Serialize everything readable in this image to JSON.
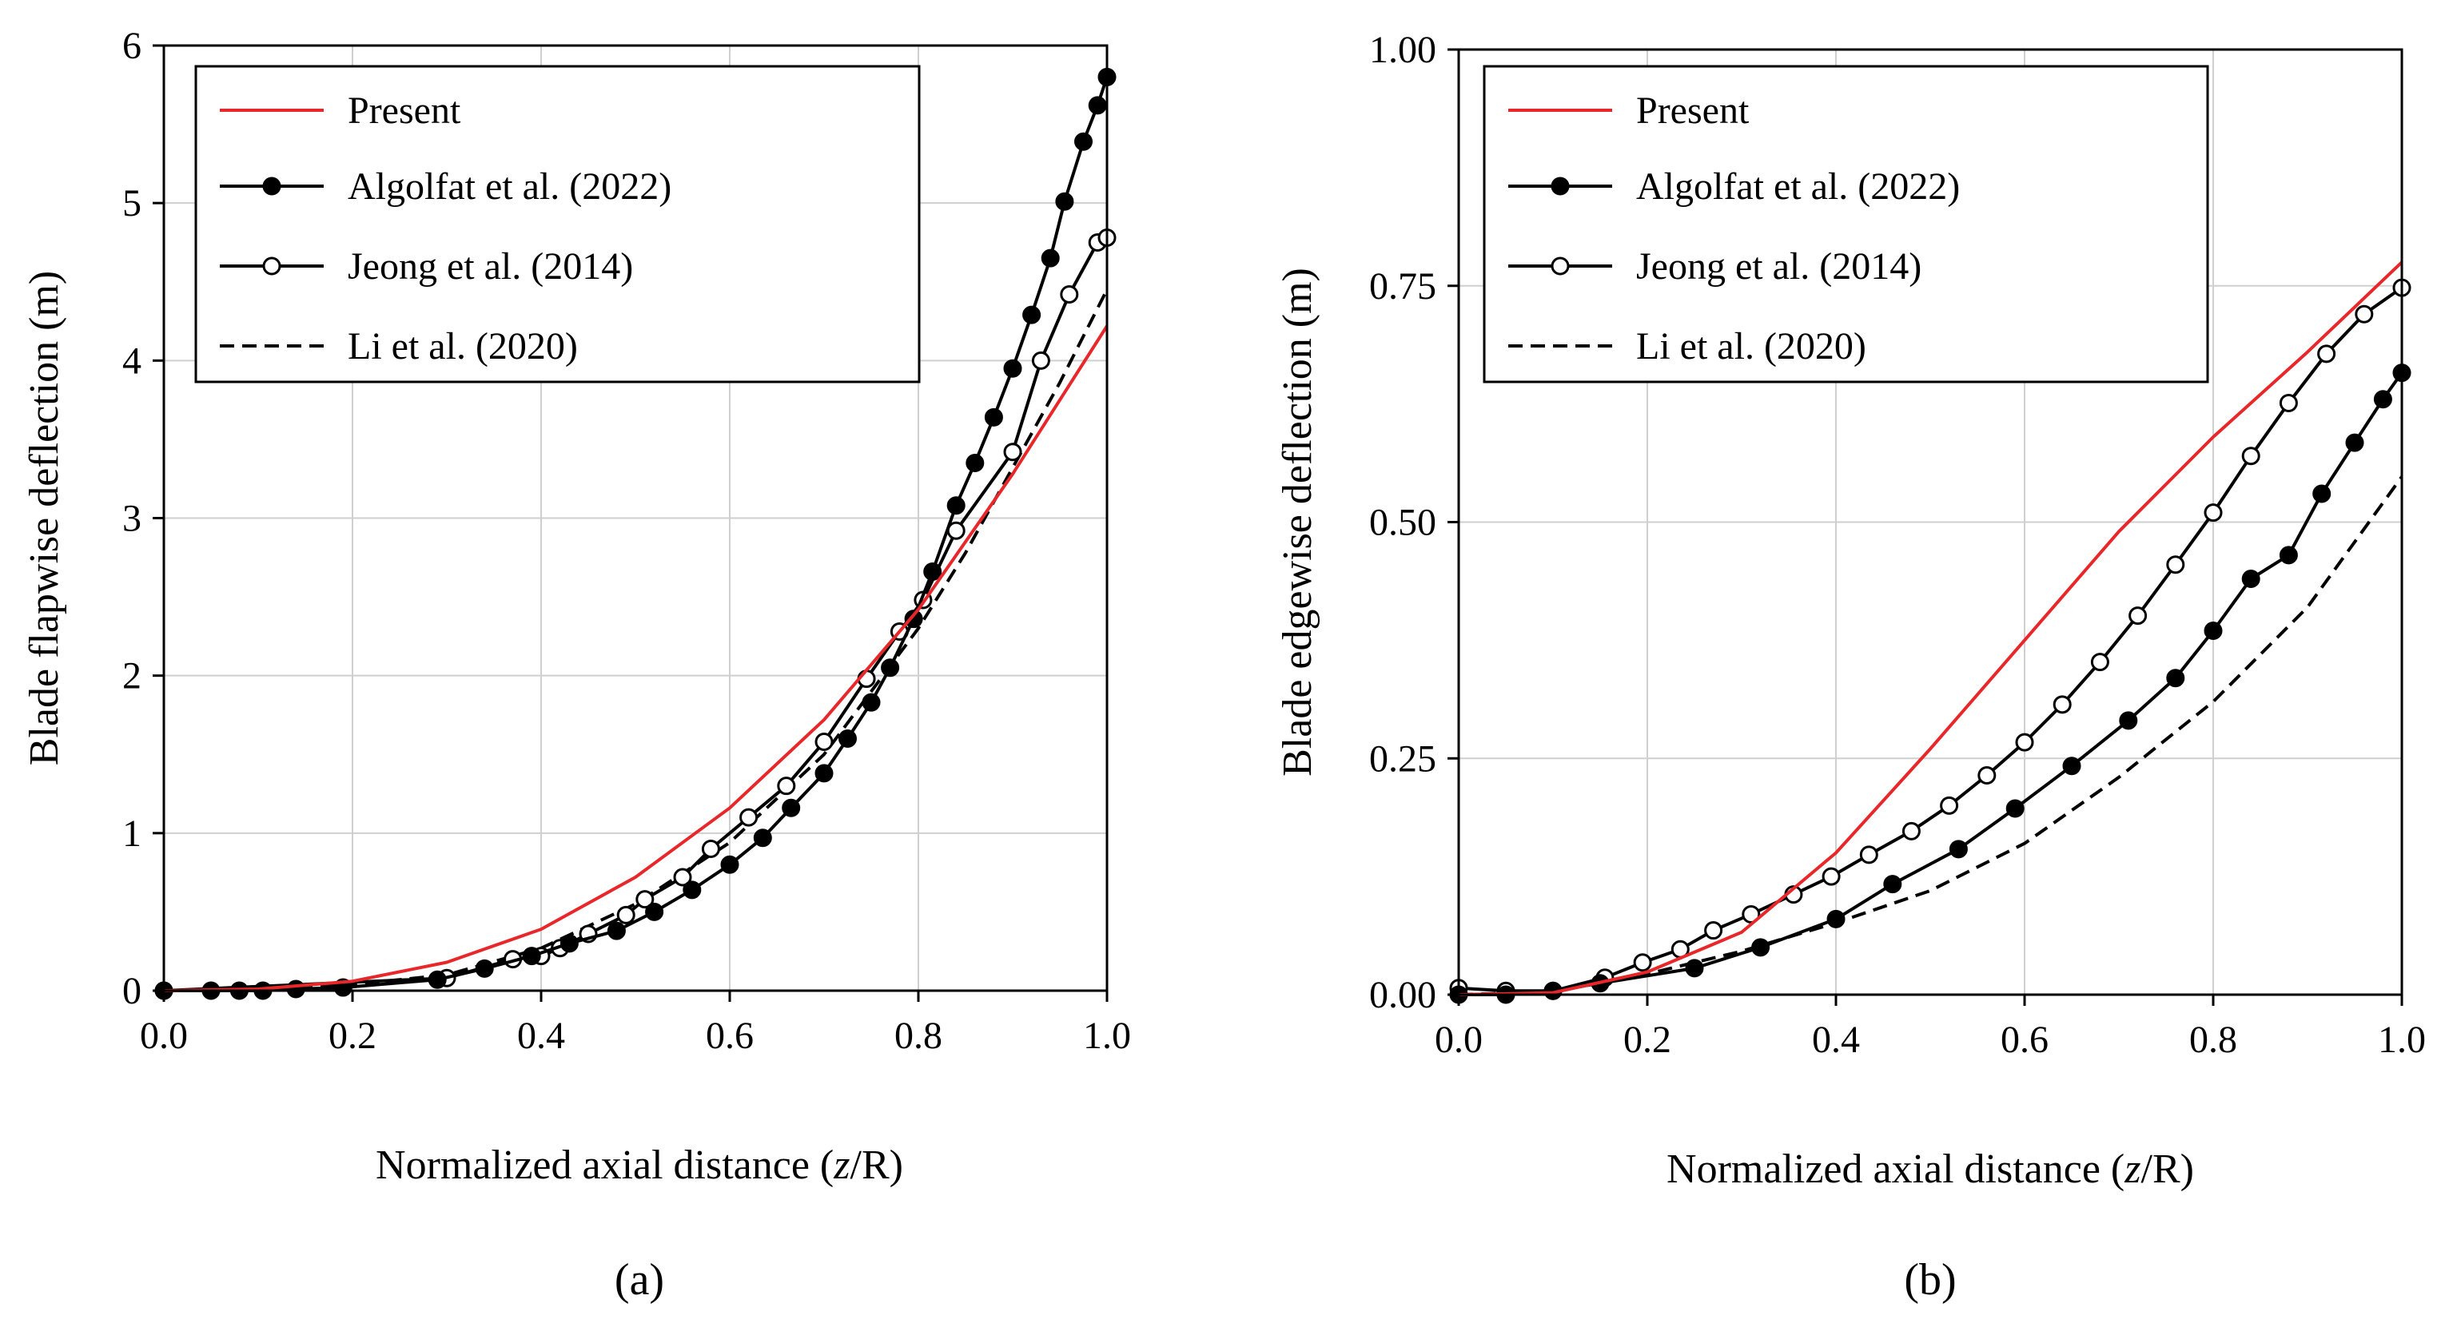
{
  "chart_data": [
    {
      "type": "line",
      "caption": "(a)",
      "xlabel": "Normalized axial distance (z/R)",
      "xlabel_parts": [
        "Normalized axial distance (",
        "z",
        "/R)"
      ],
      "ylabel": "Blade flapwise deflection (m)",
      "xlim": [
        0,
        1
      ],
      "ylim": [
        0,
        6
      ],
      "xticks": [
        "0.0",
        "0.2",
        "0.4",
        "0.6",
        "0.8",
        "1.0"
      ],
      "xtick_values": [
        0,
        0.2,
        0.4,
        0.6,
        0.8,
        1.0
      ],
      "yticks": [
        "0",
        "1",
        "2",
        "3",
        "4",
        "5",
        "6"
      ],
      "ytick_values": [
        0,
        1,
        2,
        3,
        4,
        5,
        6
      ],
      "grid": true,
      "legend_position": "top-left",
      "series": [
        {
          "name": "Present",
          "color": "#e8272a",
          "style": "solid",
          "marker": "none",
          "x": [
            0,
            0.1,
            0.2,
            0.3,
            0.4,
            0.5,
            0.6,
            0.7,
            0.8,
            0.9,
            1.0
          ],
          "y": [
            0,
            0.01,
            0.06,
            0.18,
            0.39,
            0.72,
            1.16,
            1.72,
            2.42,
            3.28,
            4.22
          ]
        },
        {
          "name": "Algolfat et al. (2022)",
          "color": "#000000",
          "style": "solid",
          "marker": "filled-circle",
          "x": [
            0,
            0.05,
            0.08,
            0.105,
            0.14,
            0.19,
            0.29,
            0.34,
            0.39,
            0.43,
            0.48,
            0.52,
            0.56,
            0.6,
            0.635,
            0.665,
            0.7,
            0.725,
            0.75,
            0.77,
            0.795,
            0.815,
            0.84,
            0.86,
            0.88,
            0.9,
            0.92,
            0.94,
            0.955,
            0.975,
            0.99,
            1.0
          ],
          "y": [
            0,
            0,
            0,
            0,
            0.01,
            0.02,
            0.07,
            0.14,
            0.22,
            0.3,
            0.38,
            0.5,
            0.64,
            0.8,
            0.97,
            1.16,
            1.38,
            1.6,
            1.83,
            2.05,
            2.36,
            2.66,
            3.08,
            3.35,
            3.64,
            3.95,
            4.29,
            4.65,
            5.01,
            5.39,
            5.62,
            5.8
          ]
        },
        {
          "name": "Jeong et al. (2014)",
          "color": "#000000",
          "style": "solid",
          "marker": "open-circle",
          "x": [
            0,
            0.3,
            0.37,
            0.4,
            0.42,
            0.45,
            0.49,
            0.51,
            0.55,
            0.58,
            0.62,
            0.66,
            0.7,
            0.745,
            0.78,
            0.805,
            0.84,
            0.9,
            0.93,
            0.96,
            0.99,
            1.0
          ],
          "y": [
            0,
            0.08,
            0.2,
            0.22,
            0.27,
            0.36,
            0.48,
            0.58,
            0.72,
            0.9,
            1.1,
            1.3,
            1.58,
            1.98,
            2.28,
            2.48,
            2.92,
            3.42,
            4.0,
            4.42,
            4.75,
            4.78
          ]
        },
        {
          "name": "Li et al. (2020)",
          "color": "#000000",
          "style": "dashed",
          "marker": "none",
          "x": [
            0,
            0.1,
            0.2,
            0.3,
            0.4,
            0.5,
            0.6,
            0.7,
            0.8,
            0.85,
            0.9,
            0.95,
            1.0
          ],
          "y": [
            0,
            0.01,
            0.04,
            0.1,
            0.27,
            0.55,
            0.94,
            1.5,
            2.3,
            2.78,
            3.32,
            3.86,
            4.45
          ]
        }
      ]
    },
    {
      "type": "line",
      "caption": "(b)",
      "xlabel": "Normalized axial distance (z/R)",
      "xlabel_parts": [
        "Normalized axial distance (",
        "z",
        "/R)"
      ],
      "ylabel": "Blade edgewise deflection (m)",
      "xlim": [
        0,
        1
      ],
      "ylim": [
        0,
        1
      ],
      "xticks": [
        "0.0",
        "0.2",
        "0.4",
        "0.6",
        "0.8",
        "1.0"
      ],
      "xtick_values": [
        0,
        0.2,
        0.4,
        0.6,
        0.8,
        1.0
      ],
      "yticks": [
        "0.00",
        "0.25",
        "0.50",
        "0.75",
        "1.00"
      ],
      "ytick_values": [
        0,
        0.25,
        0.5,
        0.75,
        1.0
      ],
      "grid": true,
      "legend_position": "top-left",
      "series": [
        {
          "name": "Present",
          "color": "#e8272a",
          "style": "solid",
          "marker": "none",
          "x": [
            0,
            0.1,
            0.2,
            0.3,
            0.4,
            0.5,
            0.6,
            0.7,
            0.8,
            0.9,
            1.0
          ],
          "y": [
            0,
            0.002,
            0.024,
            0.066,
            0.15,
            0.26,
            0.375,
            0.49,
            0.59,
            0.68,
            0.775
          ]
        },
        {
          "name": "Algolfat et al. (2022)",
          "color": "#000000",
          "style": "solid",
          "marker": "filled-circle",
          "x": [
            0,
            0.05,
            0.1,
            0.15,
            0.25,
            0.32,
            0.4,
            0.46,
            0.53,
            0.59,
            0.65,
            0.71,
            0.76,
            0.8,
            0.84,
            0.88,
            0.915,
            0.95,
            0.98,
            1.0
          ],
          "y": [
            0,
            0,
            0.004,
            0.012,
            0.028,
            0.05,
            0.08,
            0.117,
            0.154,
            0.197,
            0.242,
            0.29,
            0.335,
            0.385,
            0.44,
            0.465,
            0.53,
            0.584,
            0.63,
            0.658
          ]
        },
        {
          "name": "Jeong et al. (2014)",
          "color": "#000000",
          "style": "solid",
          "marker": "open-circle",
          "x": [
            0,
            0.05,
            0.1,
            0.155,
            0.195,
            0.235,
            0.27,
            0.31,
            0.355,
            0.395,
            0.435,
            0.48,
            0.52,
            0.56,
            0.6,
            0.64,
            0.68,
            0.72,
            0.76,
            0.8,
            0.84,
            0.88,
            0.92,
            0.96,
            1.0
          ],
          "y": [
            0.007,
            0.004,
            0.004,
            0.018,
            0.034,
            0.048,
            0.068,
            0.085,
            0.106,
            0.125,
            0.148,
            0.173,
            0.2,
            0.232,
            0.267,
            0.307,
            0.352,
            0.401,
            0.455,
            0.51,
            0.57,
            0.626,
            0.678,
            0.72,
            0.748
          ]
        },
        {
          "name": "Li et al. (2020)",
          "color": "#000000",
          "style": "dashed",
          "marker": "none",
          "x": [
            0,
            0.1,
            0.2,
            0.3,
            0.4,
            0.5,
            0.6,
            0.7,
            0.8,
            0.9,
            1.0
          ],
          "y": [
            0,
            0.003,
            0.022,
            0.046,
            0.076,
            0.11,
            0.16,
            0.23,
            0.31,
            0.41,
            0.548
          ]
        }
      ]
    }
  ]
}
